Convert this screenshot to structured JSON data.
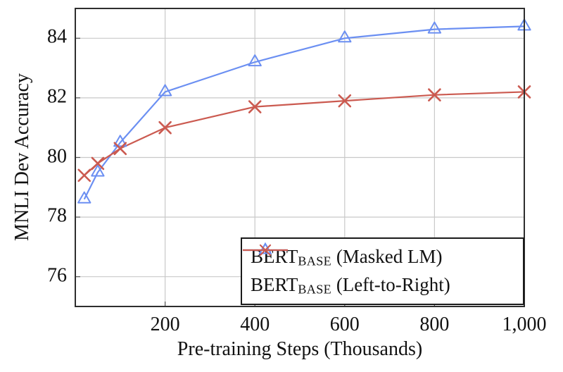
{
  "chart_data": {
    "type": "line",
    "title": "",
    "xlabel": "Pre-training Steps (Thousands)",
    "ylabel": "MNLI Dev Accuracy",
    "x": [
      20,
      50,
      100,
      200,
      400,
      600,
      800,
      1000
    ],
    "series": [
      {
        "name_pre": "BERT",
        "name_sub": "BASE",
        "name_post": " (Masked LM)",
        "marker": "triangle",
        "color": "#6b8ff2",
        "values": [
          78.6,
          79.5,
          80.5,
          82.2,
          83.2,
          84.0,
          84.3,
          84.4
        ]
      },
      {
        "name_pre": "BERT",
        "name_sub": "BASE",
        "name_post": " (Left-to-Right)",
        "marker": "x",
        "color": "#cb5a50",
        "values": [
          79.4,
          79.8,
          80.3,
          81.0,
          81.7,
          81.9,
          82.1,
          82.2
        ]
      }
    ],
    "xticks": {
      "values": [
        200,
        400,
        600,
        800,
        1000
      ],
      "labels": [
        "200",
        "400",
        "600",
        "800",
        "1,000"
      ]
    },
    "yticks": {
      "values": [
        76,
        78,
        80,
        82,
        84
      ],
      "labels": [
        "76",
        "78",
        "80",
        "82",
        "84"
      ]
    },
    "xlim": [
      0,
      1000
    ],
    "ylim": [
      75,
      85
    ],
    "grid": true,
    "legend_position": "bottom-right",
    "colors": {
      "grid": "#c9c9c9",
      "frame": "#2e2e2e",
      "tick": "#555555",
      "text": "#111111",
      "background": "#ffffff"
    }
  }
}
